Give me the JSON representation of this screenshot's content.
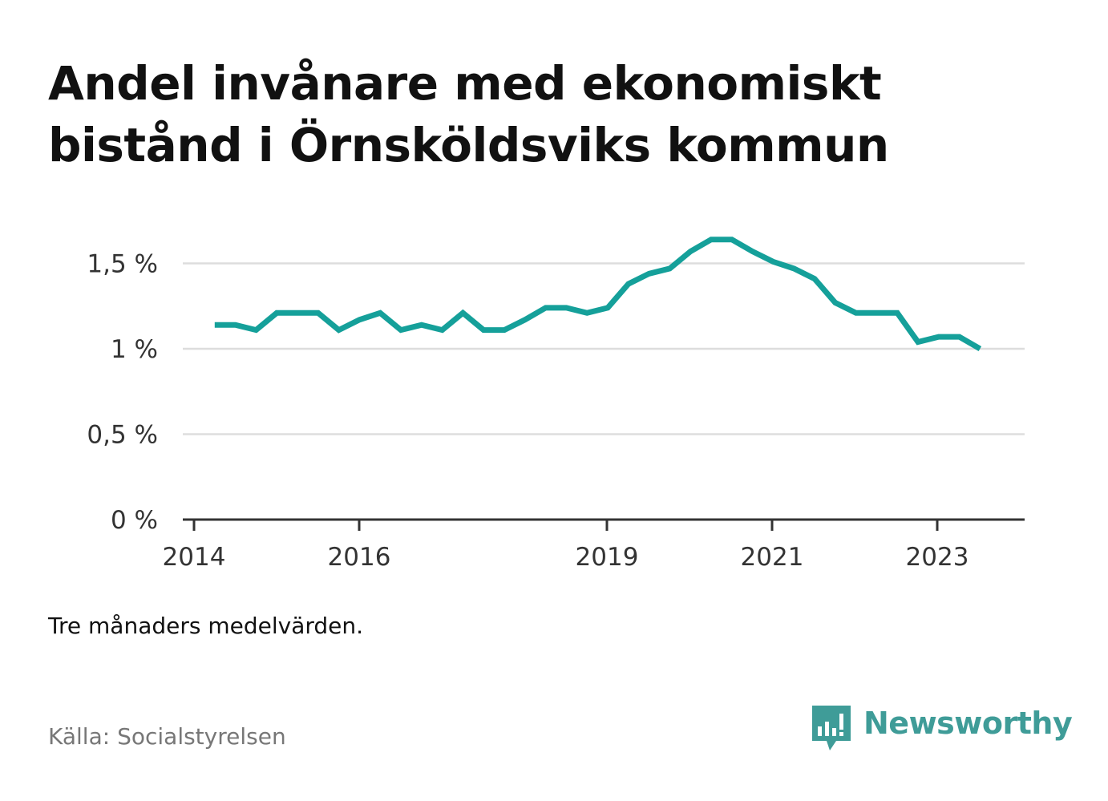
{
  "title_lines": [
    "Andel invånare med ekonomiskt",
    "bistånd i Örnsköldsviks kommun"
  ],
  "note": "Tre månaders medelvärden.",
  "source": "Källa: Socialstyrelsen",
  "brand": {
    "name": "Newsworthy",
    "icon": "bar-chart-speech-bubble-icon",
    "color": "#3f9c98"
  },
  "colors": {
    "line": "#15a09a",
    "grid": "#dddddd",
    "axis": "#333333"
  },
  "chart_data": {
    "type": "line",
    "title": "Andel invånare med ekonomiskt bistånd i Örnsköldsviks kommun",
    "xlabel": "",
    "ylabel": "",
    "x_ticks": [
      "2014",
      "2016",
      "2019",
      "2021",
      "2023"
    ],
    "y_ticks": [
      "0 %",
      "0,5 %",
      "1 %",
      "1,5 %"
    ],
    "y_tick_values": [
      0,
      0.5,
      1,
      1.5
    ],
    "ylim": [
      0,
      1.7
    ],
    "grid": "horizontal",
    "legend": "none",
    "series": [
      {
        "values": [
          {
            "x": "2014-04",
            "y": 1.14
          },
          {
            "x": "2014-07",
            "y": 1.14
          },
          {
            "x": "2014-10",
            "y": 1.11
          },
          {
            "x": "2015-01",
            "y": 1.21
          },
          {
            "x": "2015-04",
            "y": 1.21
          },
          {
            "x": "2015-07",
            "y": 1.21
          },
          {
            "x": "2015-10",
            "y": 1.11
          },
          {
            "x": "2016-01",
            "y": 1.17
          },
          {
            "x": "2016-04",
            "y": 1.21
          },
          {
            "x": "2016-07",
            "y": 1.11
          },
          {
            "x": "2016-10",
            "y": 1.14
          },
          {
            "x": "2017-01",
            "y": 1.11
          },
          {
            "x": "2017-04",
            "y": 1.21
          },
          {
            "x": "2017-07",
            "y": 1.11
          },
          {
            "x": "2017-10",
            "y": 1.11
          },
          {
            "x": "2018-01",
            "y": 1.17
          },
          {
            "x": "2018-04",
            "y": 1.24
          },
          {
            "x": "2018-07",
            "y": 1.24
          },
          {
            "x": "2018-10",
            "y": 1.21
          },
          {
            "x": "2019-01",
            "y": 1.24
          },
          {
            "x": "2019-04",
            "y": 1.38
          },
          {
            "x": "2019-07",
            "y": 1.44
          },
          {
            "x": "2019-10",
            "y": 1.47
          },
          {
            "x": "2020-01",
            "y": 1.57
          },
          {
            "x": "2020-04",
            "y": 1.64
          },
          {
            "x": "2020-07",
            "y": 1.64
          },
          {
            "x": "2020-10",
            "y": 1.57
          },
          {
            "x": "2021-01",
            "y": 1.51
          },
          {
            "x": "2021-04",
            "y": 1.47
          },
          {
            "x": "2021-07",
            "y": 1.41
          },
          {
            "x": "2021-10",
            "y": 1.27
          },
          {
            "x": "2022-01",
            "y": 1.21
          },
          {
            "x": "2022-04",
            "y": 1.21
          },
          {
            "x": "2022-07",
            "y": 1.21
          },
          {
            "x": "2022-10",
            "y": 1.04
          },
          {
            "x": "2023-01",
            "y": 1.07
          },
          {
            "x": "2023-04",
            "y": 1.07
          },
          {
            "x": "2023-07",
            "y": 1.0
          }
        ]
      }
    ]
  }
}
